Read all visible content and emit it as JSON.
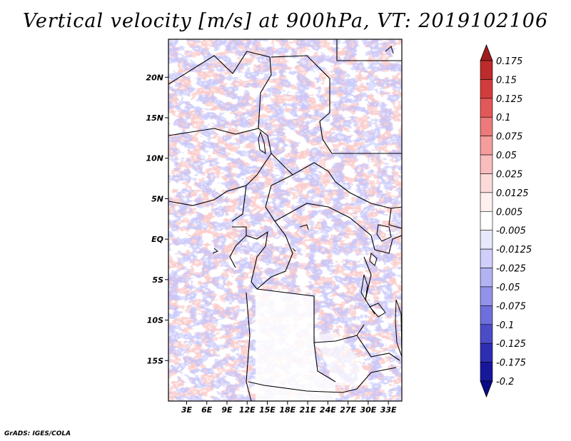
{
  "title": "Vertical velocity [m/s] at 900hPa, VT: 2019102106",
  "credit": "GrADS: IGES/COLA",
  "map": {
    "variable": "Vertical velocity",
    "units": "m/s",
    "level": "900hPa",
    "valid_time": "2019102106",
    "lat_labels": [
      "20N",
      "15N",
      "10N",
      "5N",
      "EQ",
      "5S",
      "10S",
      "15S"
    ],
    "lat_values": [
      20,
      15,
      10,
      5,
      0,
      -5,
      -10,
      -15
    ],
    "lon_labels": [
      "3E",
      "6E",
      "9E",
      "12E",
      "15E",
      "18E",
      "21E",
      "24E",
      "27E",
      "30E",
      "33E"
    ],
    "lon_values": [
      3,
      6,
      9,
      12,
      15,
      18,
      21,
      24,
      27,
      30,
      33
    ],
    "lon_range": [
      0.3,
      35
    ],
    "lat_range": [
      -20,
      24.7
    ]
  },
  "colorbar": {
    "labels": [
      "0.175",
      "0.15",
      "0.125",
      "0.1",
      "0.075",
      "0.05",
      "0.025",
      "0.0125",
      "0.005",
      "-0.005",
      "-0.0125",
      "-0.025",
      "-0.05",
      "-0.075",
      "-0.1",
      "-0.125",
      "-0.175",
      "-0.2"
    ],
    "colors": [
      "#a11c1c",
      "#bd2b2b",
      "#d33c3c",
      "#e25858",
      "#ec7a7a",
      "#f49d9d",
      "#f9bdbd",
      "#fcdada",
      "#fff0f0",
      "#ffffff",
      "#e8e8fd",
      "#cfcffa",
      "#b3b3f4",
      "#9292ea",
      "#6f6fdc",
      "#4c4cc8",
      "#2e2eb0",
      "#17179a",
      "#0a0a88"
    ]
  }
}
